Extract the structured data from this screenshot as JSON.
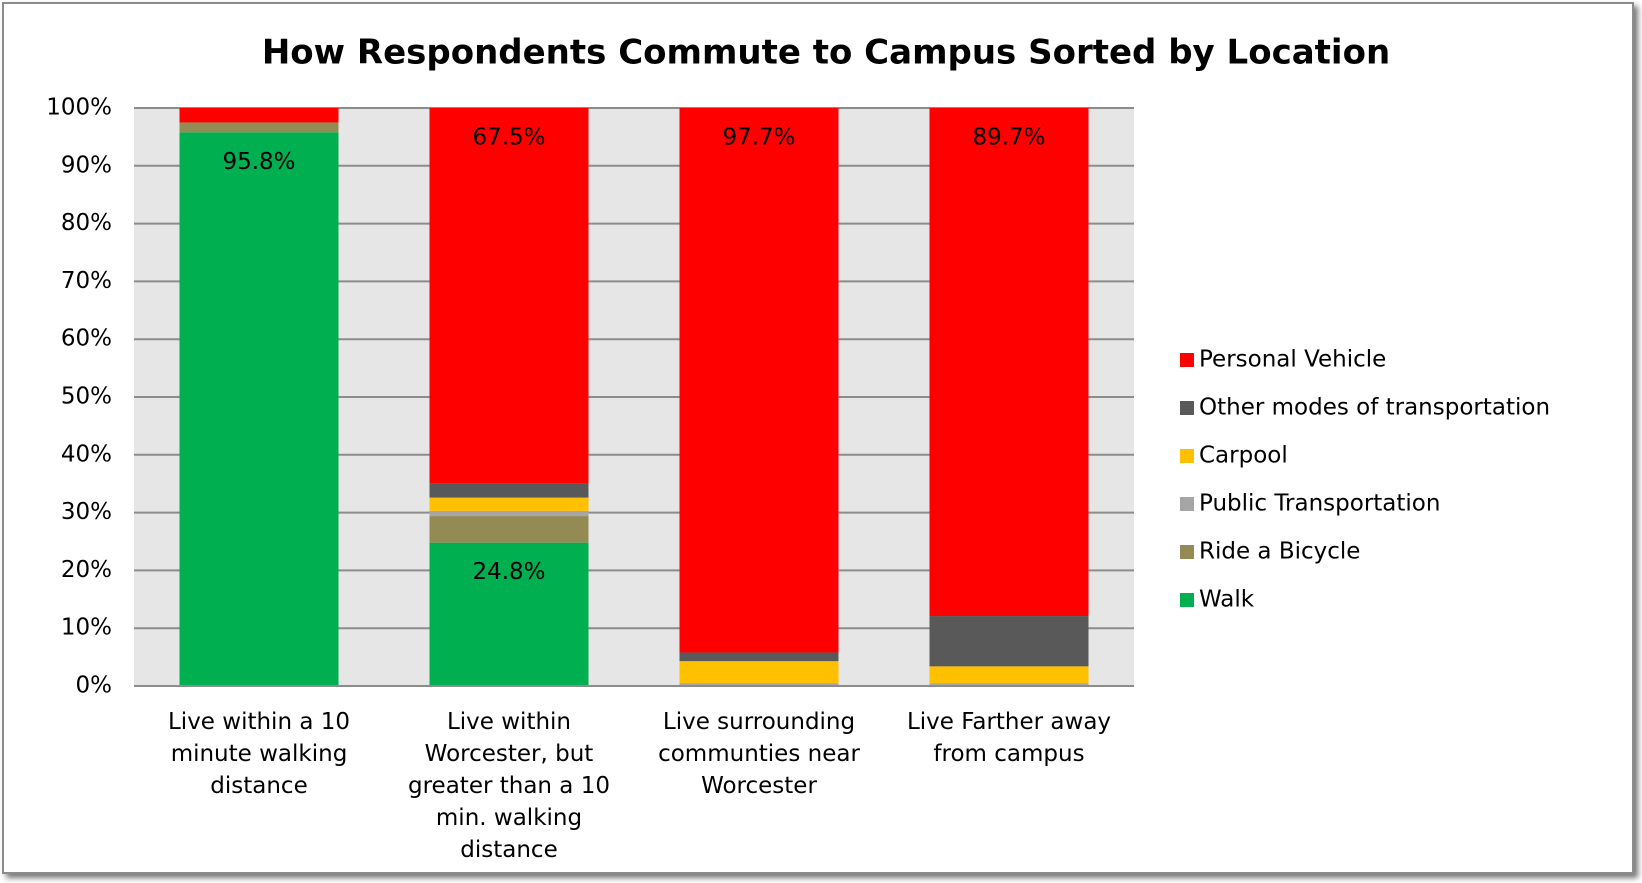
{
  "chart_data": {
    "type": "stacked_bar",
    "title": "How Respondents Commute to Campus Sorted by Location",
    "categories": [
      "Live within a 10 minute walking distance",
      "Live within Worcester, but greater than a 10 min. walking distance",
      "Live surrounding communties near Worcester",
      "Live Farther away from campus"
    ],
    "series": [
      {
        "name": "Walk",
        "color": "#00b050",
        "values": [
          95.8,
          24.8,
          0,
          0
        ],
        "value_labels": [
          "95.8%",
          "24.8%",
          null,
          null
        ]
      },
      {
        "name": "Ride a Bicycle",
        "color": "#948a54",
        "values": [
          1.7,
          4.6,
          0,
          0
        ]
      },
      {
        "name": "Public Transportation",
        "color": "#a6a6a6",
        "values": [
          0,
          0.9,
          0.5,
          0.5
        ]
      },
      {
        "name": "Carpool",
        "color": "#ffc000",
        "values": [
          0,
          2.3,
          3.8,
          2.9
        ]
      },
      {
        "name": "Other modes of transportation",
        "color": "#595959",
        "values": [
          0,
          2.4,
          1.5,
          8.7
        ]
      },
      {
        "name": "Personal Vehicle",
        "color": "#ff0000",
        "values": [
          2.5,
          67.5,
          97.7,
          89.7
        ],
        "value_labels": [
          null,
          "67.5%",
          "97.7%",
          "89.7%"
        ]
      }
    ],
    "ylim": [
      0,
      100
    ],
    "yticks": [
      {
        "value": 0,
        "label": "0%"
      },
      {
        "value": 10,
        "label": "10%"
      },
      {
        "value": 20,
        "label": "20%"
      },
      {
        "value": 30,
        "label": "30%"
      },
      {
        "value": 40,
        "label": "40%"
      },
      {
        "value": 50,
        "label": "50%"
      },
      {
        "value": 60,
        "label": "60%"
      },
      {
        "value": 70,
        "label": "70%"
      },
      {
        "value": 80,
        "label": "80%"
      },
      {
        "value": 90,
        "label": "90%"
      },
      {
        "value": 100,
        "label": "100%"
      }
    ],
    "grid": true,
    "legend": "right"
  }
}
